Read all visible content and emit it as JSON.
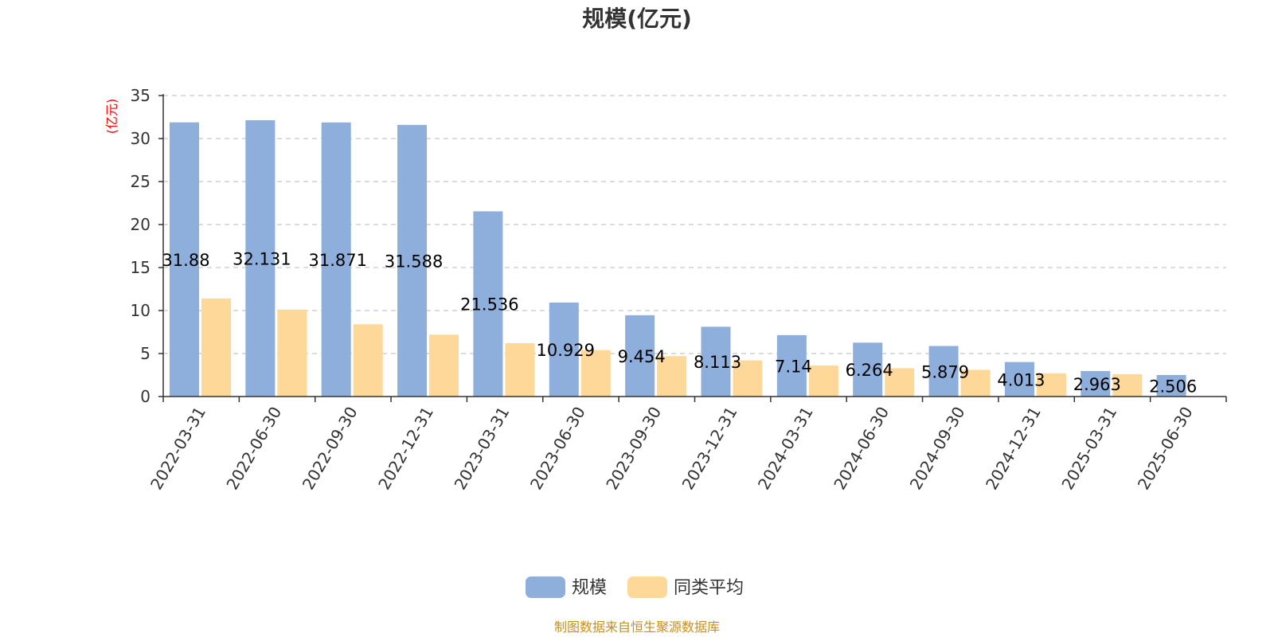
{
  "chart_data": {
    "type": "bar",
    "title": "规模(亿元)",
    "ylabel": "(亿元)",
    "xlabel": "",
    "ylim": [
      0,
      35
    ],
    "yticks": [
      0,
      5,
      10,
      15,
      20,
      25,
      30,
      35
    ],
    "grid": true,
    "legend_position": "bottom-center",
    "categories": [
      "2022-03-31",
      "2022-06-30",
      "2022-09-30",
      "2022-12-31",
      "2023-03-31",
      "2023-06-30",
      "2023-09-30",
      "2023-12-31",
      "2024-03-31",
      "2024-06-30",
      "2024-09-30",
      "2024-12-31",
      "2025-03-31",
      "2025-06-30"
    ],
    "series": [
      {
        "name": "规模",
        "color": "#8eaedb",
        "values": [
          31.88,
          32.131,
          31.871,
          31.588,
          21.536,
          10.929,
          9.454,
          8.113,
          7.14,
          6.264,
          5.879,
          4.013,
          2.963,
          2.506
        ],
        "data_labels": [
          "31.88",
          "32.131",
          "31.871",
          "31.588",
          "21.536",
          "10.929",
          "9.454",
          "8.113",
          "7.14",
          "6.264",
          "5.879",
          "4.013",
          "2.963",
          "2.506"
        ]
      },
      {
        "name": "同类平均",
        "color": "#fdd898",
        "values": [
          11.4,
          10.1,
          8.4,
          7.2,
          6.2,
          5.4,
          4.7,
          4.2,
          3.6,
          3.3,
          3.1,
          2.7,
          2.6,
          null
        ]
      }
    ]
  },
  "source_note": "制图数据来自恒生聚源数据库"
}
